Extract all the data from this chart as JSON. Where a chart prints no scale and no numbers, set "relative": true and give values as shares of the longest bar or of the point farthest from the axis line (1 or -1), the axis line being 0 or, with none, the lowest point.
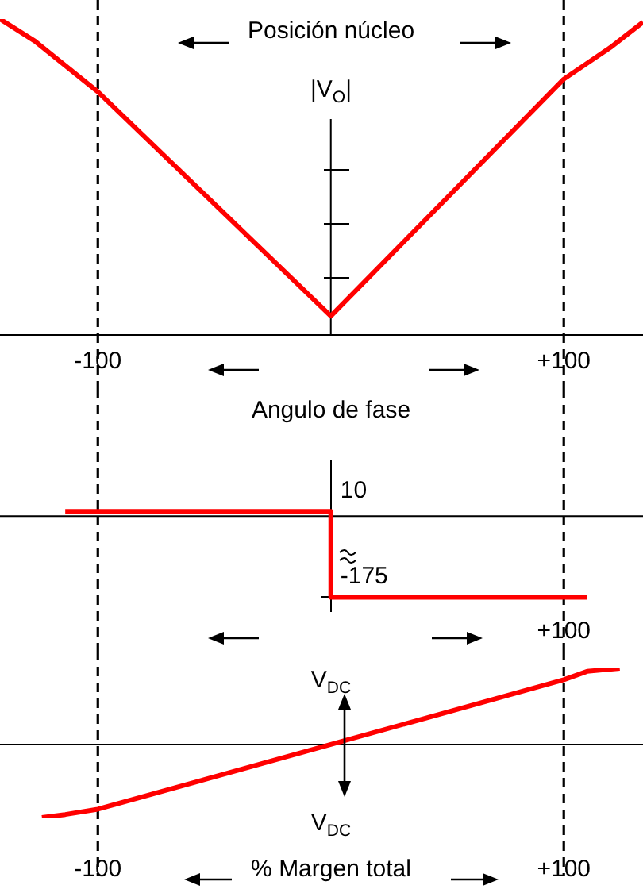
{
  "chart_data": [
    {
      "type": "line",
      "title": "Posición núcleo",
      "ylabel": "|V$_{O}$|",
      "relative": true,
      "x": [
        -142,
        -127,
        -100,
        0,
        100,
        120,
        134
      ],
      "series": [
        {
          "color": "#ff0000",
          "values": [
            1,
            0.93,
            0.77,
            0.06,
            0.81,
            0.91,
            0.99
          ]
        }
      ],
      "xlim": [
        -142,
        134
      ],
      "xticks": [
        -100,
        {
          "value": 100,
          "label": "+100"
        }
      ],
      "ref_lines": [
        {
          "axis": "x",
          "value": -100,
          "line_style": "dashed"
        },
        {
          "axis": "x",
          "value": 100,
          "line_style": "dashed"
        },
        {
          "axis": "x",
          "value": 0
        }
      ]
    },
    {
      "type": "step",
      "title": "Angulo de fase",
      "x": [
        -114,
        0,
        110
      ],
      "series": [
        {
          "color": "#ff0000",
          "values": [
            10,
            -175,
            -175
          ]
        }
      ],
      "xlim": [
        -142,
        134
      ],
      "annotations": [
        {
          "text": "+100",
          "x": 100
        }
      ],
      "ylim": [
        -205,
        120
      ],
      "yticks": [
        10,
        -175
      ],
      "ref_lines": [
        {
          "axis": "x",
          "value": -100,
          "line_style": "dashed"
        },
        {
          "axis": "x",
          "value": 100,
          "line_style": "dashed"
        },
        {
          "axis": "y",
          "value": 0
        }
      ]
    },
    {
      "type": "line",
      "xlabel": "% Margen total",
      "relative": true,
      "x": [
        -124,
        -114,
        -100,
        0,
        100,
        110,
        124
      ],
      "series": [
        {
          "color": "#ff0000",
          "values": [
            -0.96,
            -0.92,
            -0.85,
            0,
            0.85,
            0.96,
            1
          ]
        }
      ],
      "xlim": [
        -142,
        134
      ],
      "xticks": [
        -100,
        {
          "value": 100,
          "label": "+100"
        }
      ],
      "annotations": [
        "V$_{DC}$",
        "V$_{DC}$"
      ],
      "ref_lines": [
        {
          "axis": "x",
          "value": -100,
          "line_style": "dashed"
        },
        {
          "axis": "x",
          "value": 100,
          "line_style": "dashed"
        },
        {
          "axis": "y",
          "value": 0
        }
      ]
    }
  ]
}
